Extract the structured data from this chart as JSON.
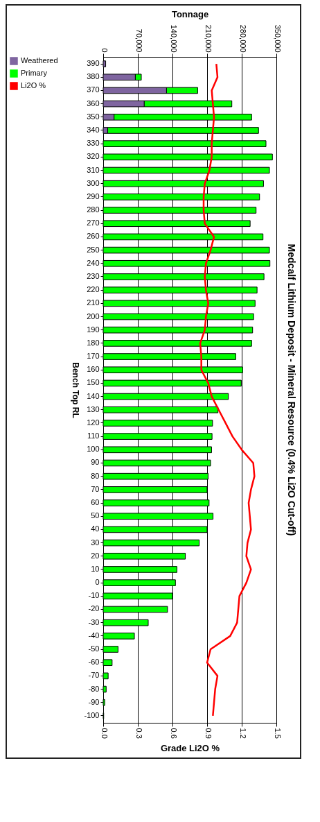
{
  "chart_data": {
    "type": "bar",
    "orientation": "horizontal",
    "stacked": true,
    "title": "Medcalf Lithium Deposit - Mineral Resource (0.4% Li2O Cut-off)",
    "xlabel": "Tonnage",
    "x2label": "Grade Li2O %",
    "ylabel": "Bench Top RL",
    "categories": [
      "390",
      "380",
      "370",
      "360",
      "350",
      "340",
      "330",
      "320",
      "310",
      "300",
      "290",
      "280",
      "270",
      "260",
      "250",
      "240",
      "230",
      "220",
      "210",
      "200",
      "190",
      "180",
      "170",
      "160",
      "150",
      "140",
      "130",
      "120",
      "110",
      "100",
      "90",
      "80",
      "70",
      "60",
      "50",
      "40",
      "30",
      "20",
      "10",
      "0",
      "-10",
      "-20",
      "-30",
      "-40",
      "-50",
      "-60",
      "-70",
      "-80",
      "-90",
      "-100"
    ],
    "series": [
      {
        "name": "Weathered",
        "color": "#7f65a0",
        "values": [
          5000,
          65000,
          128000,
          83000,
          22000,
          9000,
          null,
          null,
          null,
          null,
          null,
          null,
          null,
          null,
          null,
          null,
          null,
          null,
          null,
          null,
          null,
          null,
          null,
          null,
          null,
          null,
          null,
          null,
          null,
          null,
          null,
          null,
          null,
          null,
          null,
          null,
          null,
          null,
          null,
          null,
          null,
          null,
          null,
          null,
          null,
          null,
          null,
          null,
          null,
          null
        ]
      },
      {
        "name": "Primary",
        "color": "#00ff00",
        "values": [
          null,
          12000,
          63000,
          177000,
          278000,
          305000,
          329000,
          342000,
          336000,
          324000,
          316000,
          309000,
          297000,
          323000,
          336000,
          337000,
          325000,
          311000,
          307000,
          304000,
          302000,
          300000,
          268000,
          282000,
          279000,
          253000,
          232000,
          221000,
          220000,
          219000,
          217000,
          212000,
          210000,
          214000,
          222000,
          210000,
          194000,
          166000,
          149000,
          146000,
          140000,
          130000,
          91000,
          63000,
          30000,
          18000,
          10000,
          6000,
          3000,
          1000
        ]
      },
      {
        "name": "Li2O %",
        "type": "line",
        "axis": "x2",
        "color": "#ff0000",
        "values": [
          0.98,
          0.99,
          0.94,
          0.95,
          0.96,
          0.95,
          0.94,
          0.94,
          0.92,
          0.88,
          0.87,
          0.87,
          0.88,
          0.96,
          0.93,
          0.89,
          0.88,
          0.89,
          0.91,
          0.89,
          0.88,
          0.84,
          0.85,
          0.85,
          0.91,
          0.94,
          1.0,
          1.06,
          1.12,
          1.2,
          1.3,
          1.31,
          1.28,
          1.26,
          1.27,
          1.28,
          1.25,
          1.24,
          1.28,
          1.24,
          1.18,
          1.17,
          1.16,
          1.1,
          0.93,
          0.9,
          0.99,
          0.97,
          0.96,
          0.95
        ]
      }
    ],
    "xlim": [
      0,
      350000
    ],
    "xticks": [
      0,
      {
        "value": 70000,
        "label": "70,000"
      },
      {
        "value": 140000,
        "label": "140,000"
      },
      {
        "value": 210000,
        "label": "210,000"
      },
      {
        "value": 280000,
        "label": "280,000"
      },
      {
        "value": 350000,
        "label": "350,000"
      }
    ],
    "x2lim": [
      0,
      1.5
    ],
    "x2ticks": [
      {
        "value": 0,
        "label": "0.0"
      },
      0.3,
      0.6,
      0.9,
      {
        "value": 1.2,
        "label": "1.2"
      },
      1.5
    ],
    "grid": "x",
    "legend": "left"
  }
}
